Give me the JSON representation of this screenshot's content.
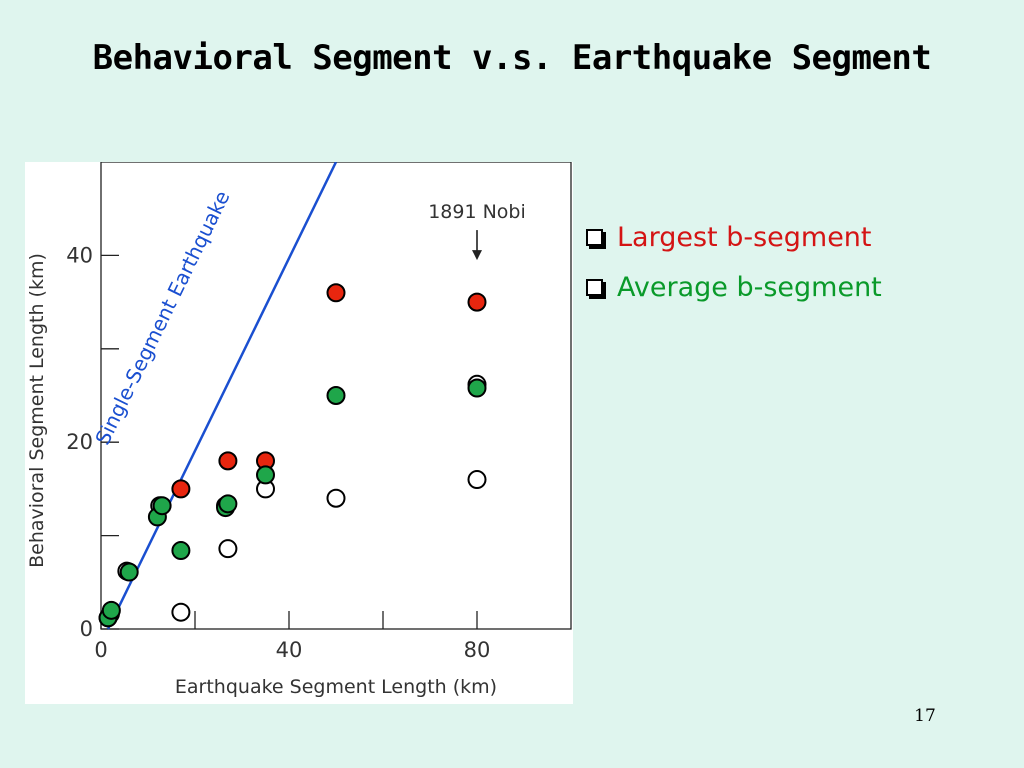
{
  "slide": {
    "title": "Behavioral Segment v.s. Earthquake Segment",
    "page_number": "17"
  },
  "bullets": [
    {
      "label": "Largest b-segment",
      "color": "#d41414"
    },
    {
      "label": "Average b-segment",
      "color": "#0a9a2a"
    }
  ],
  "chart_data": {
    "type": "scatter",
    "xlabel": "Earthquake Segment Length  (km)",
    "ylabel": "Behavioral Segment Length  (km)",
    "xlim": [
      0,
      100
    ],
    "ylim": [
      0,
      50
    ],
    "x_tick_labels": [
      {
        "value": 0,
        "label": "0"
      },
      {
        "value": 40,
        "label": "40"
      },
      {
        "value": 80,
        "label": "80"
      }
    ],
    "x_ticks_unlabeled": [
      20,
      60
    ],
    "y_tick_labels": [
      {
        "value": 0,
        "label": "0"
      },
      {
        "value": 20,
        "label": "20"
      },
      {
        "value": 40,
        "label": "40"
      }
    ],
    "y_ticks_unlabeled": [
      10,
      30
    ],
    "grid": false,
    "reference_line": {
      "label": "Single-Segment Earthquake",
      "color": "#1a4fd0",
      "from": [
        1.5,
        0
      ],
      "to": [
        50,
        50
      ]
    },
    "annotation": {
      "text": "1891 Nobi",
      "x": 80,
      "y": 39.5
    },
    "series": [
      {
        "style": "open",
        "fill": "#ffffff",
        "points": [
          [
            1.5,
            1.2
          ],
          [
            17,
            1.8
          ],
          [
            27,
            8.6
          ],
          [
            35,
            15
          ],
          [
            50,
            14
          ],
          [
            80,
            16
          ],
          [
            80,
            26.2
          ],
          [
            12.5,
            13.2
          ],
          [
            26.5,
            13.2
          ],
          [
            2,
            1.6
          ],
          [
            5.5,
            6.2
          ]
        ]
      },
      {
        "style": "largest",
        "fill": "#e8260f",
        "points": [
          [
            17,
            15
          ],
          [
            27,
            18
          ],
          [
            35,
            18
          ],
          [
            50,
            36
          ],
          [
            80,
            35
          ]
        ]
      },
      {
        "style": "average",
        "fill": "#1fa64a",
        "points": [
          [
            1.5,
            1.2
          ],
          [
            2.2,
            2
          ],
          [
            6,
            6.1
          ],
          [
            12,
            12
          ],
          [
            13,
            13.2
          ],
          [
            17,
            8.4
          ],
          [
            26.5,
            13
          ],
          [
            27,
            13.4
          ],
          [
            35,
            16.5
          ],
          [
            50,
            25
          ],
          [
            80,
            25.8
          ]
        ]
      }
    ]
  }
}
